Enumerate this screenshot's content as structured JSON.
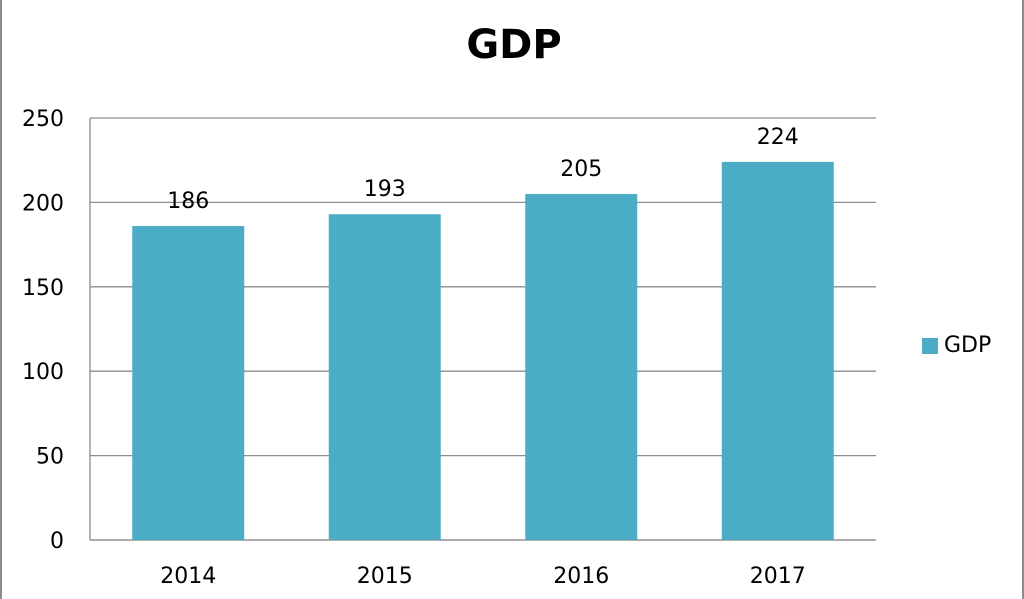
{
  "chart_data": {
    "type": "bar",
    "title": "GDP",
    "xlabel": "",
    "ylabel": "",
    "categories": [
      "2014",
      "2015",
      "2016",
      "2017"
    ],
    "series": [
      {
        "name": "GDP",
        "values": [
          186,
          193,
          205,
          224
        ],
        "color": "#4bacc6"
      }
    ],
    "ylim": [
      0,
      250
    ],
    "yticks": [
      0,
      50,
      100,
      150,
      200,
      250
    ],
    "grid": true,
    "data_labels": true,
    "legend_position": "right"
  }
}
